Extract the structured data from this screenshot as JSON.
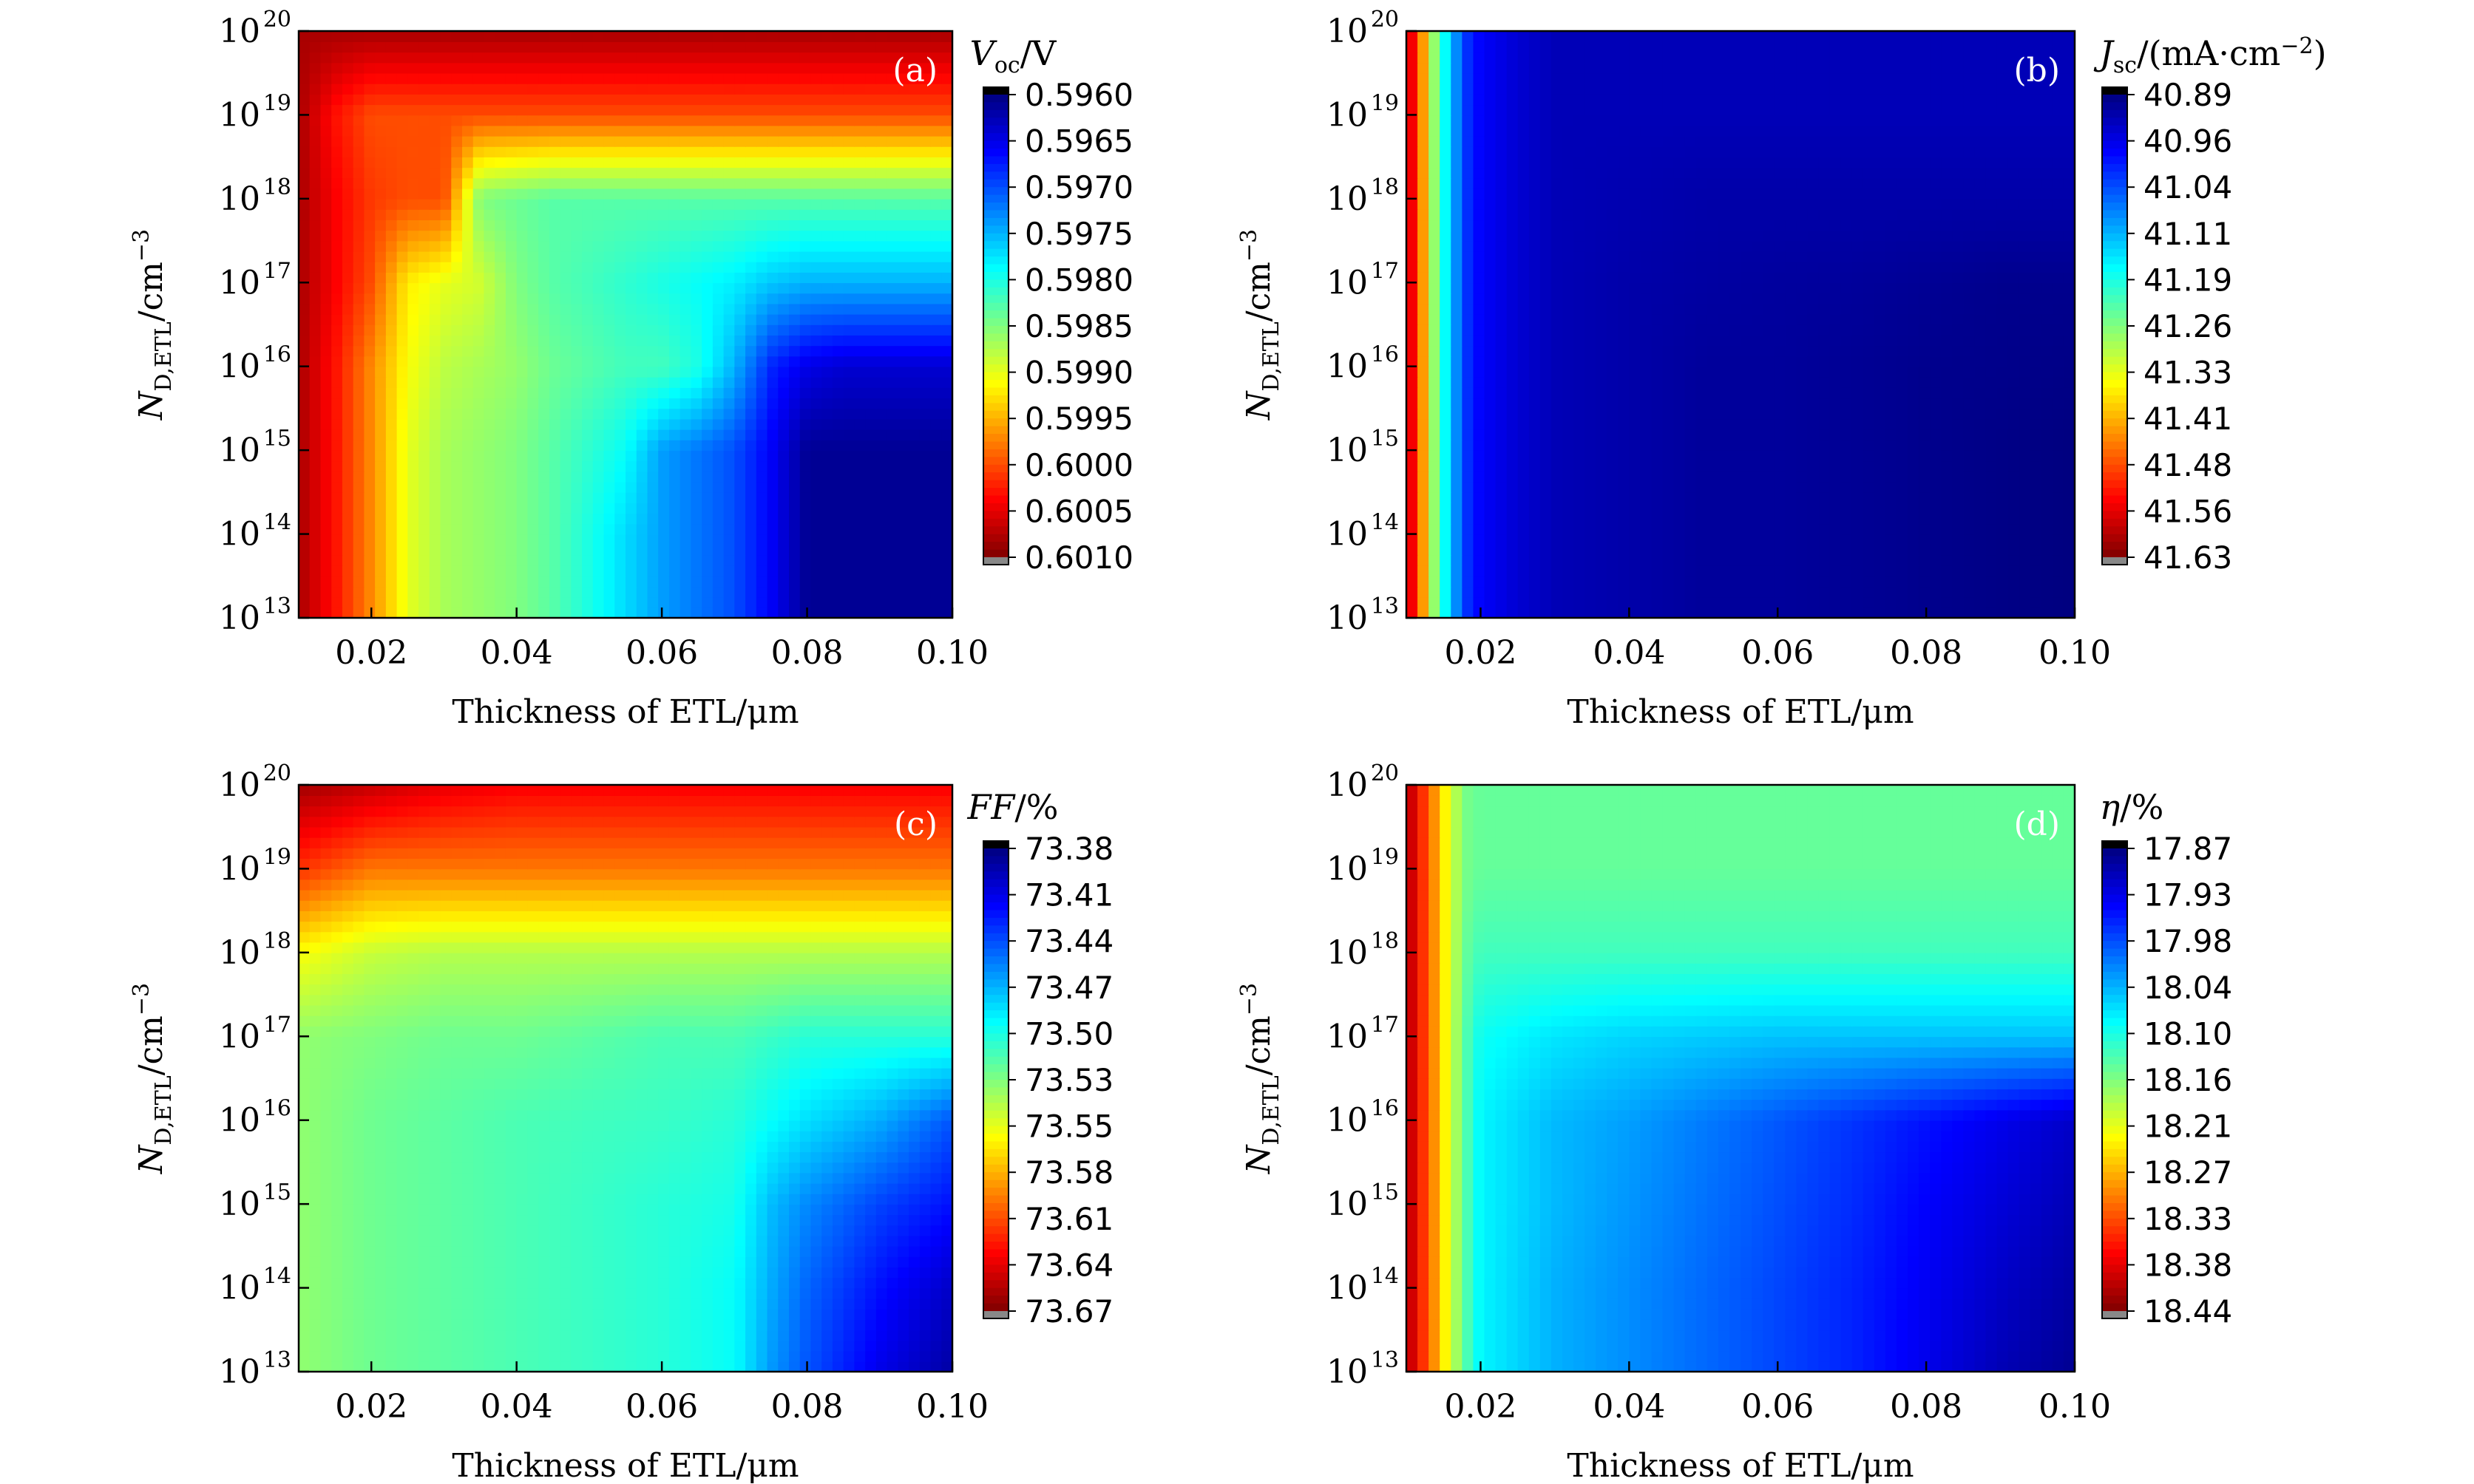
{
  "chart_data": [
    {
      "type": "heatmap",
      "panel_label": "(a)",
      "xlabel": "Thickness of ETL/μm",
      "ylabel": "N_D,ETL/cm^-3",
      "ylabel_main": "N",
      "ylabel_sub": "D,ETL",
      "ylabel_unit": "/cm",
      "ylabel_sup": "−3",
      "xlim": [
        0.01,
        0.1
      ],
      "ylim_log10": [
        13,
        20
      ],
      "yscale": "log",
      "x_ticks": [
        "0.02",
        "0.04",
        "0.06",
        "0.08",
        "0.10"
      ],
      "x_tick_values": [
        0.02,
        0.04,
        0.06,
        0.08,
        0.1
      ],
      "y_ticks_base": "10",
      "y_ticks_exp": [
        "13",
        "14",
        "15",
        "16",
        "17",
        "18",
        "19",
        "20"
      ],
      "colorbar": {
        "title_main": "V",
        "title_sub": "oc",
        "title_rest": "/V",
        "labels": [
          "0.5960",
          "0.5965",
          "0.5970",
          "0.5975",
          "0.5980",
          "0.5985",
          "0.5990",
          "0.5995",
          "0.6000",
          "0.6005",
          "0.6010"
        ],
        "colormap": "jet",
        "top_value": 0.596,
        "bottom_value": 0.601
      },
      "x_samples": [
        0.01,
        0.015,
        0.02,
        0.025,
        0.03,
        0.035,
        0.04,
        0.045,
        0.05,
        0.055,
        0.06,
        0.065,
        0.07,
        0.075,
        0.08,
        0.085,
        0.09,
        0.095,
        0.1
      ],
      "y_samples_log10": [
        13,
        14,
        15,
        16,
        17,
        18,
        19,
        20
      ],
      "values": [
        [
          0.6008,
          0.6003,
          0.5997,
          0.599,
          0.5987,
          0.5986,
          0.5985,
          0.5983,
          0.598,
          0.5977,
          0.5974,
          0.5972,
          0.597,
          0.5966,
          0.5961,
          0.5961,
          0.5961,
          0.5961,
          0.5961
        ],
        [
          0.6008,
          0.6003,
          0.5997,
          0.599,
          0.5987,
          0.5986,
          0.5985,
          0.5983,
          0.598,
          0.5977,
          0.5974,
          0.5972,
          0.597,
          0.5966,
          0.5961,
          0.5961,
          0.5961,
          0.5961,
          0.5961
        ],
        [
          0.6008,
          0.6003,
          0.5997,
          0.599,
          0.5987,
          0.5986,
          0.5985,
          0.5983,
          0.5981,
          0.5979,
          0.5974,
          0.5972,
          0.597,
          0.5966,
          0.5961,
          0.5961,
          0.5961,
          0.5961,
          0.5961
        ],
        [
          0.6008,
          0.6003,
          0.5997,
          0.5991,
          0.5988,
          0.5987,
          0.5986,
          0.5984,
          0.5983,
          0.5982,
          0.5982,
          0.598,
          0.5975,
          0.5968,
          0.5965,
          0.5964,
          0.5964,
          0.5964,
          0.5964
        ],
        [
          0.6008,
          0.6004,
          0.6,
          0.5992,
          0.599,
          0.5989,
          0.5985,
          0.5983,
          0.5982,
          0.5981,
          0.598,
          0.5979,
          0.5978,
          0.5976,
          0.5975,
          0.5975,
          0.5975,
          0.5975,
          0.5975
        ],
        [
          0.6008,
          0.6004,
          0.6001,
          0.6,
          0.6,
          0.5985,
          0.5984,
          0.5983,
          0.5983,
          0.5983,
          0.5983,
          0.5983,
          0.5983,
          0.5983,
          0.5983,
          0.5983,
          0.5983,
          0.5983,
          0.5983
        ],
        [
          0.6008,
          0.6003,
          0.6,
          0.6,
          0.6,
          0.6,
          0.6,
          0.6,
          0.6,
          0.6,
          0.6,
          0.6,
          0.6,
          0.6,
          0.6,
          0.6,
          0.6,
          0.6,
          0.6
        ],
        [
          0.6008,
          0.6008,
          0.6008,
          0.6008,
          0.6008,
          0.6008,
          0.6008,
          0.6008,
          0.6008,
          0.6008,
          0.6008,
          0.6008,
          0.6008,
          0.6008,
          0.6008,
          0.6008,
          0.6008,
          0.6008,
          0.6008
        ]
      ]
    },
    {
      "type": "heatmap",
      "panel_label": "(b)",
      "xlabel": "Thickness of ETL/μm",
      "ylabel": "N_D,ETL/cm^-3",
      "ylabel_main": "N",
      "ylabel_sub": "D,ETL",
      "ylabel_unit": "/cm",
      "ylabel_sup": "−3",
      "xlim": [
        0.01,
        0.1
      ],
      "ylim_log10": [
        13,
        20
      ],
      "yscale": "log",
      "x_ticks": [
        "0.02",
        "0.04",
        "0.06",
        "0.08",
        "0.10"
      ],
      "x_tick_values": [
        0.02,
        0.04,
        0.06,
        0.08,
        0.1
      ],
      "y_ticks_base": "10",
      "y_ticks_exp": [
        "13",
        "14",
        "15",
        "16",
        "17",
        "18",
        "19",
        "20"
      ],
      "colorbar": {
        "title_main": "J",
        "title_sub": "sc",
        "title_rest": "/(mA·cm",
        "title_sup": "−2",
        "title_end": ")",
        "labels": [
          "40.89",
          "40.96",
          "41.04",
          "41.11",
          "41.19",
          "41.26",
          "41.33",
          "41.41",
          "41.48",
          "41.56",
          "41.63"
        ],
        "colormap": "jet",
        "top_value": 40.89,
        "bottom_value": 41.63
      },
      "x_samples": [
        0.01,
        0.012,
        0.014,
        0.016,
        0.018,
        0.02,
        0.025,
        0.03,
        0.04,
        0.05,
        0.06,
        0.07,
        0.08,
        0.09,
        0.1
      ],
      "y_samples_log10": [
        13,
        14,
        15,
        16,
        17,
        18,
        19,
        20
      ],
      "values": [
        [
          41.6,
          41.45,
          41.25,
          41.12,
          41.02,
          40.98,
          40.95,
          40.93,
          40.92,
          40.91,
          40.91,
          40.905,
          40.9,
          40.895,
          40.89
        ],
        [
          41.6,
          41.45,
          41.25,
          41.12,
          41.02,
          40.98,
          40.95,
          40.93,
          40.92,
          40.91,
          40.91,
          40.905,
          40.9,
          40.895,
          40.89
        ],
        [
          41.6,
          41.45,
          41.25,
          41.12,
          41.02,
          40.98,
          40.95,
          40.93,
          40.92,
          40.91,
          40.91,
          40.905,
          40.9,
          40.895,
          40.89
        ],
        [
          41.6,
          41.45,
          41.25,
          41.12,
          41.02,
          40.98,
          40.95,
          40.93,
          40.92,
          40.91,
          40.91,
          40.905,
          40.9,
          40.898,
          40.895
        ],
        [
          41.6,
          41.45,
          41.25,
          41.12,
          41.02,
          40.98,
          40.95,
          40.93,
          40.92,
          40.915,
          40.912,
          40.91,
          40.905,
          40.9,
          40.9
        ],
        [
          41.6,
          41.45,
          41.25,
          41.12,
          41.02,
          40.98,
          40.95,
          40.93,
          40.925,
          40.92,
          40.92,
          40.92,
          40.92,
          40.92,
          40.92
        ],
        [
          41.6,
          41.45,
          41.25,
          41.12,
          41.02,
          40.98,
          40.95,
          40.93,
          40.93,
          40.93,
          40.93,
          40.93,
          40.93,
          40.93,
          40.93
        ],
        [
          41.6,
          41.45,
          41.25,
          41.12,
          41.02,
          40.98,
          40.95,
          40.93,
          40.93,
          40.93,
          40.93,
          40.93,
          40.93,
          40.93,
          40.93
        ]
      ]
    },
    {
      "type": "heatmap",
      "panel_label": "(c)",
      "xlabel": "Thickness of ETL/μm",
      "ylabel": "N_D,ETL/cm^-3",
      "ylabel_main": "N",
      "ylabel_sub": "D,ETL",
      "ylabel_unit": "/cm",
      "ylabel_sup": "−3",
      "xlim": [
        0.01,
        0.1
      ],
      "ylim_log10": [
        13,
        20
      ],
      "yscale": "log",
      "x_ticks": [
        "0.02",
        "0.04",
        "0.06",
        "0.08",
        "0.10"
      ],
      "x_tick_values": [
        0.02,
        0.04,
        0.06,
        0.08,
        0.1
      ],
      "y_ticks_base": "10",
      "y_ticks_exp": [
        "13",
        "14",
        "15",
        "16",
        "17",
        "18",
        "19",
        "20"
      ],
      "colorbar": {
        "title_main": "FF",
        "title_rest": "/%",
        "labels": [
          "73.38",
          "73.41",
          "73.44",
          "73.47",
          "73.50",
          "73.53",
          "73.55",
          "73.58",
          "73.61",
          "73.64",
          "73.67"
        ],
        "colormap": "jet",
        "top_value": 73.38,
        "bottom_value": 73.67
      },
      "x_samples": [
        0.01,
        0.02,
        0.03,
        0.04,
        0.05,
        0.06,
        0.07,
        0.075,
        0.08,
        0.09,
        0.1
      ],
      "y_samples_log10": [
        13,
        14,
        15,
        16,
        17,
        18,
        19,
        20
      ],
      "values": [
        [
          73.53,
          73.52,
          73.515,
          73.51,
          73.505,
          73.5,
          73.49,
          73.46,
          73.44,
          73.41,
          73.39
        ],
        [
          73.53,
          73.52,
          73.515,
          73.51,
          73.505,
          73.5,
          73.49,
          73.465,
          73.445,
          73.42,
          73.4
        ],
        [
          73.53,
          73.52,
          73.515,
          73.51,
          73.505,
          73.5,
          73.495,
          73.47,
          73.455,
          73.435,
          73.42
        ],
        [
          73.53,
          73.52,
          73.515,
          73.51,
          73.507,
          73.505,
          73.5,
          73.49,
          73.48,
          73.465,
          73.44
        ],
        [
          73.53,
          73.525,
          73.52,
          73.52,
          73.515,
          73.51,
          73.51,
          73.505,
          73.5,
          73.5,
          73.5
        ],
        [
          73.56,
          73.545,
          73.54,
          73.54,
          73.54,
          73.54,
          73.54,
          73.54,
          73.54,
          73.54,
          73.54
        ],
        [
          73.62,
          73.6,
          73.6,
          73.6,
          73.6,
          73.6,
          73.6,
          73.6,
          73.6,
          73.6,
          73.6
        ],
        [
          73.66,
          73.65,
          73.64,
          73.635,
          73.635,
          73.635,
          73.635,
          73.635,
          73.635,
          73.635,
          73.635
        ]
      ]
    },
    {
      "type": "heatmap",
      "panel_label": "(d)",
      "xlabel": "Thickness of ETL/μm",
      "ylabel": "N_D,ETL/cm^-3",
      "ylabel_main": "N",
      "ylabel_sub": "D,ETL",
      "ylabel_unit": "/cm",
      "ylabel_sup": "−3",
      "xlim": [
        0.01,
        0.1
      ],
      "ylim_log10": [
        13,
        20
      ],
      "yscale": "log",
      "x_ticks": [
        "0.02",
        "0.04",
        "0.06",
        "0.08",
        "0.10"
      ],
      "x_tick_values": [
        0.02,
        0.04,
        0.06,
        0.08,
        0.1
      ],
      "y_ticks_base": "10",
      "y_ticks_exp": [
        "13",
        "14",
        "15",
        "16",
        "17",
        "18",
        "19",
        "20"
      ],
      "colorbar": {
        "title_main": "η",
        "title_rest": "/%",
        "labels": [
          "17.87",
          "17.93",
          "17.98",
          "18.04",
          "18.10",
          "18.16",
          "18.21",
          "18.27",
          "18.33",
          "18.38",
          "18.44"
        ],
        "colormap": "jet",
        "top_value": 17.87,
        "bottom_value": 18.44
      },
      "x_samples": [
        0.01,
        0.012,
        0.014,
        0.016,
        0.018,
        0.02,
        0.03,
        0.04,
        0.05,
        0.06,
        0.07,
        0.08,
        0.09,
        0.1
      ],
      "y_samples_log10": [
        13,
        14,
        15,
        16,
        17,
        18,
        19,
        20
      ],
      "values": [
        [
          18.42,
          18.35,
          18.28,
          18.2,
          18.13,
          18.08,
          18.04,
          18.02,
          18.0,
          17.98,
          17.96,
          17.93,
          17.9,
          17.88
        ],
        [
          18.42,
          18.35,
          18.28,
          18.2,
          18.13,
          18.08,
          18.04,
          18.02,
          18.0,
          17.98,
          17.96,
          17.935,
          17.91,
          17.89
        ],
        [
          18.42,
          18.35,
          18.28,
          18.2,
          18.13,
          18.08,
          18.045,
          18.025,
          18.005,
          17.985,
          17.965,
          17.94,
          17.92,
          17.9
        ],
        [
          18.42,
          18.35,
          18.28,
          18.2,
          18.13,
          18.08,
          18.045,
          18.03,
          18.01,
          17.99,
          17.97,
          17.95,
          17.93,
          17.91
        ],
        [
          18.42,
          18.35,
          18.28,
          18.2,
          18.13,
          18.09,
          18.07,
          18.06,
          18.055,
          18.05,
          18.05,
          18.05,
          18.05,
          18.05
        ],
        [
          18.42,
          18.35,
          18.28,
          18.2,
          18.14,
          18.12,
          18.12,
          18.12,
          18.12,
          18.12,
          18.12,
          18.12,
          18.12,
          18.12
        ],
        [
          18.42,
          18.35,
          18.28,
          18.2,
          18.15,
          18.14,
          18.14,
          18.14,
          18.14,
          18.14,
          18.14,
          18.14,
          18.14,
          18.14
        ],
        [
          18.42,
          18.35,
          18.28,
          18.2,
          18.15,
          18.14,
          18.14,
          18.14,
          18.14,
          18.14,
          18.14,
          18.14,
          18.14,
          18.14
        ]
      ]
    }
  ]
}
